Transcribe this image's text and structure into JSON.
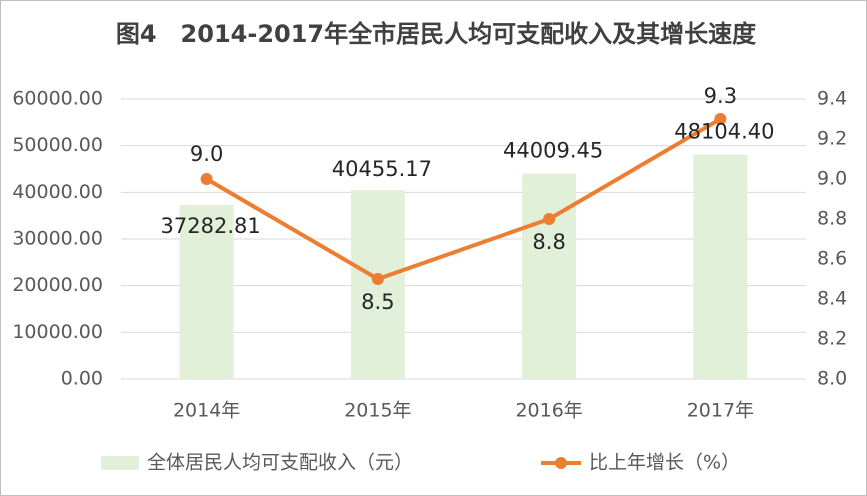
{
  "chart_data": {
    "type": "bar",
    "title": "图4　2014-2017年全市居民人均可支配收入及其增长速度",
    "categories": [
      "2014年",
      "2015年",
      "2016年",
      "2017年"
    ],
    "series": [
      {
        "name": "全体居民人均可支配收入（元）",
        "type": "bar",
        "color": "#e2efd9",
        "values": [
          37282.81,
          40455.17,
          44009.45,
          48104.4
        ],
        "value_labels": [
          "37282.81",
          "40455.17",
          "44009.45",
          "48104.40"
        ]
      },
      {
        "name": "比上年增长（%）",
        "type": "line",
        "axis": "y2",
        "color": "#ed7d31",
        "values": [
          9.0,
          8.5,
          8.8,
          9.3
        ],
        "value_labels": [
          "9.0",
          "8.5",
          "8.8",
          "9.3"
        ]
      }
    ],
    "ylim": [
      0,
      60000
    ],
    "yticks": [
      {
        "value": 0,
        "label": "0.00"
      },
      {
        "value": 10000,
        "label": "10000.00"
      },
      {
        "value": 20000,
        "label": "20000.00"
      },
      {
        "value": 30000,
        "label": "30000.00"
      },
      {
        "value": 40000,
        "label": "40000.00"
      },
      {
        "value": 50000,
        "label": "50000.00"
      },
      {
        "value": 60000,
        "label": "60000.00"
      }
    ],
    "y2lim": [
      8.0,
      9.4
    ],
    "y2ticks": [
      {
        "value": 8.0,
        "label": "8.0"
      },
      8.2,
      8.4,
      8.6,
      8.8,
      {
        "value": 9.0,
        "label": "9.0"
      },
      9.2,
      9.4
    ],
    "grid": true,
    "legend": "bottom"
  }
}
